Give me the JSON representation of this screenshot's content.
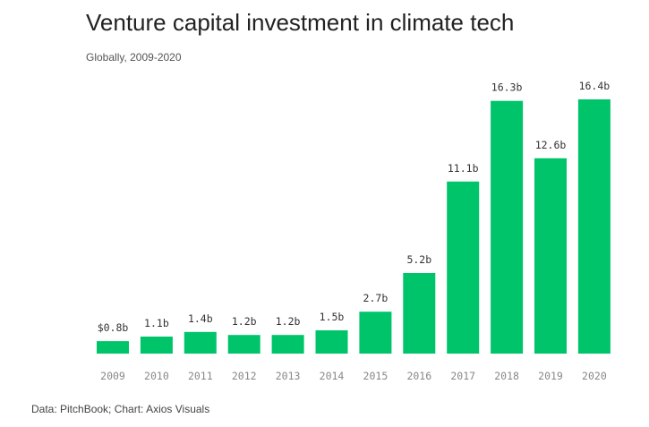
{
  "chart_data": {
    "type": "bar",
    "title": "Venture capital investment in climate tech",
    "subtitle": "Globally, 2009-2020",
    "categories": [
      "2009",
      "2010",
      "2011",
      "2012",
      "2013",
      "2014",
      "2015",
      "2016",
      "2017",
      "2018",
      "2019",
      "2020"
    ],
    "values": [
      0.8,
      1.1,
      1.4,
      1.2,
      1.2,
      1.5,
      2.7,
      5.2,
      11.1,
      16.3,
      12.6,
      16.4
    ],
    "data_labels": [
      "$0.8b",
      "1.1b",
      "1.4b",
      "1.2b",
      "1.2b",
      "1.5b",
      "2.7b",
      "5.2b",
      "11.1b",
      "16.3b",
      "12.6b",
      "16.4b"
    ],
    "xlabel": "",
    "ylabel": "",
    "ylim": [
      0,
      16.4
    ],
    "grid": false,
    "bar_color": "#00c46a",
    "source": "Data: PitchBook; Chart: Axios Visuals"
  }
}
